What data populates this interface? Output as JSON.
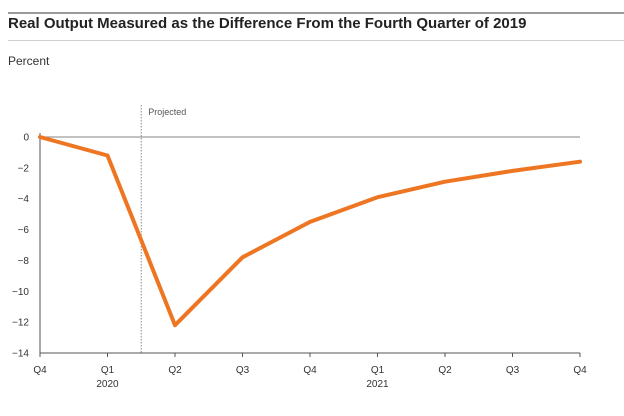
{
  "header": {
    "title": "Real Output Measured as the Difference From the Fourth Quarter of 2019",
    "unit": "Percent"
  },
  "chart_data": {
    "type": "line",
    "title": "Real Output Measured as the Difference From the Fourth Quarter of 2019",
    "ylabel": "Percent",
    "xlabel": "",
    "categories": [
      "Q4",
      "Q1",
      "Q2",
      "Q3",
      "Q4",
      "Q1",
      "Q2",
      "Q3",
      "Q4"
    ],
    "year_labels": [
      {
        "index": 1,
        "label": "2020"
      },
      {
        "index": 5,
        "label": "2021"
      }
    ],
    "series": [
      {
        "values": [
          0,
          -1.2,
          -12.2,
          -7.8,
          -5.5,
          -3.9,
          -2.9,
          -2.2,
          -1.6
        ],
        "color": "#ee7623"
      }
    ],
    "ylim": [
      -14,
      0
    ],
    "yticks": [
      0,
      -2,
      -4,
      -6,
      -8,
      -10,
      -12,
      -14
    ],
    "ytick_labels": [
      "0",
      "−2",
      "−4",
      "−6",
      "−8",
      "−10",
      "−12",
      "−14"
    ],
    "annotation": {
      "label": "Projected",
      "x_index": 1.5
    },
    "grid": false,
    "legend": "none",
    "colors": {
      "line": "#ee7623",
      "zero_line": "#9e9e9e",
      "axis": "#555555",
      "projection_line": "#8a8a8a"
    }
  }
}
